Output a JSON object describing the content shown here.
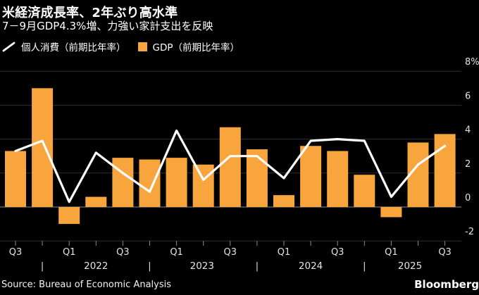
{
  "header": {
    "title": "米経済成長率、2年ぶり高水準",
    "subtitle": "7－9月GDP4.3%増、力強い家計支出を反映"
  },
  "legend": {
    "line": {
      "label": "個人消費（前期比年率）",
      "color": "#ffffff"
    },
    "bar": {
      "label": "GDP（前期比年率）",
      "color": "#f7a53c"
    }
  },
  "footer": {
    "source": "Source: Bureau of Economic Analysis",
    "brand": "Bloomberg"
  },
  "colors": {
    "background": "#000000",
    "bar": "#f7a53c",
    "line": "#ffffff",
    "grid": "#2f2f2f",
    "zero_line": "#8c8c8c",
    "axis_text": "#e3e3e3",
    "text": "#ffffff"
  },
  "chart_data": {
    "type": "bar",
    "categories": [
      "2021Q3",
      "2021Q4",
      "2022Q1",
      "2022Q2",
      "2022Q3",
      "2022Q4",
      "2023Q1",
      "2023Q2",
      "2023Q3",
      "2023Q4",
      "2024Q1",
      "2024Q2",
      "2024Q3",
      "2024Q4",
      "2025Q1",
      "2025Q2",
      "2025Q3"
    ],
    "series": [
      {
        "name": "GDP（前期比年率）",
        "type": "bar",
        "color": "#f7a53c",
        "values": [
          3.3,
          7.0,
          -1.0,
          0.6,
          2.9,
          2.8,
          2.9,
          2.5,
          4.7,
          3.4,
          0.7,
          3.6,
          3.3,
          1.9,
          -0.6,
          3.8,
          4.3
        ]
      },
      {
        "name": "個人消費（前期比年率）",
        "type": "line",
        "color": "#ffffff",
        "values": [
          3.3,
          3.9,
          0.3,
          3.2,
          2.0,
          0.9,
          4.5,
          1.6,
          3.0,
          3.0,
          1.7,
          3.9,
          4.0,
          3.9,
          0.6,
          2.5,
          3.6
        ]
      }
    ],
    "title": "米経済成長率、2年ぶり高水準",
    "xlabel": "",
    "ylabel": "",
    "ylim": [
      -2.5,
      8.4
    ],
    "grid": true,
    "legend_position": "top-left",
    "y_ticks": [
      {
        "value": 8,
        "label": "8%"
      },
      {
        "value": 6,
        "label": "6"
      },
      {
        "value": 4,
        "label": "4"
      },
      {
        "value": 2,
        "label": "2"
      },
      {
        "value": 0,
        "label": "0"
      },
      {
        "value": -2,
        "label": "-2"
      }
    ],
    "x_tick_labels": [
      {
        "index": 0,
        "label": "Q3"
      },
      {
        "index": 2,
        "label": "Q1"
      },
      {
        "index": 4,
        "label": "Q3"
      },
      {
        "index": 6,
        "label": "Q1"
      },
      {
        "index": 8,
        "label": "Q3"
      },
      {
        "index": 10,
        "label": "Q1"
      },
      {
        "index": 12,
        "label": "Q3"
      },
      {
        "index": 14,
        "label": "Q1"
      },
      {
        "index": 16,
        "label": "Q3"
      }
    ],
    "year_groups": [
      {
        "label": "2022",
        "separator_index": 1,
        "center_index": 3
      },
      {
        "label": "2023",
        "separator_index": 5,
        "center_index": 6.95
      },
      {
        "label": "2024",
        "separator_index": 9,
        "center_index": 11
      },
      {
        "label": "2025",
        "separator_index": 13,
        "center_index": 14.7
      }
    ]
  }
}
